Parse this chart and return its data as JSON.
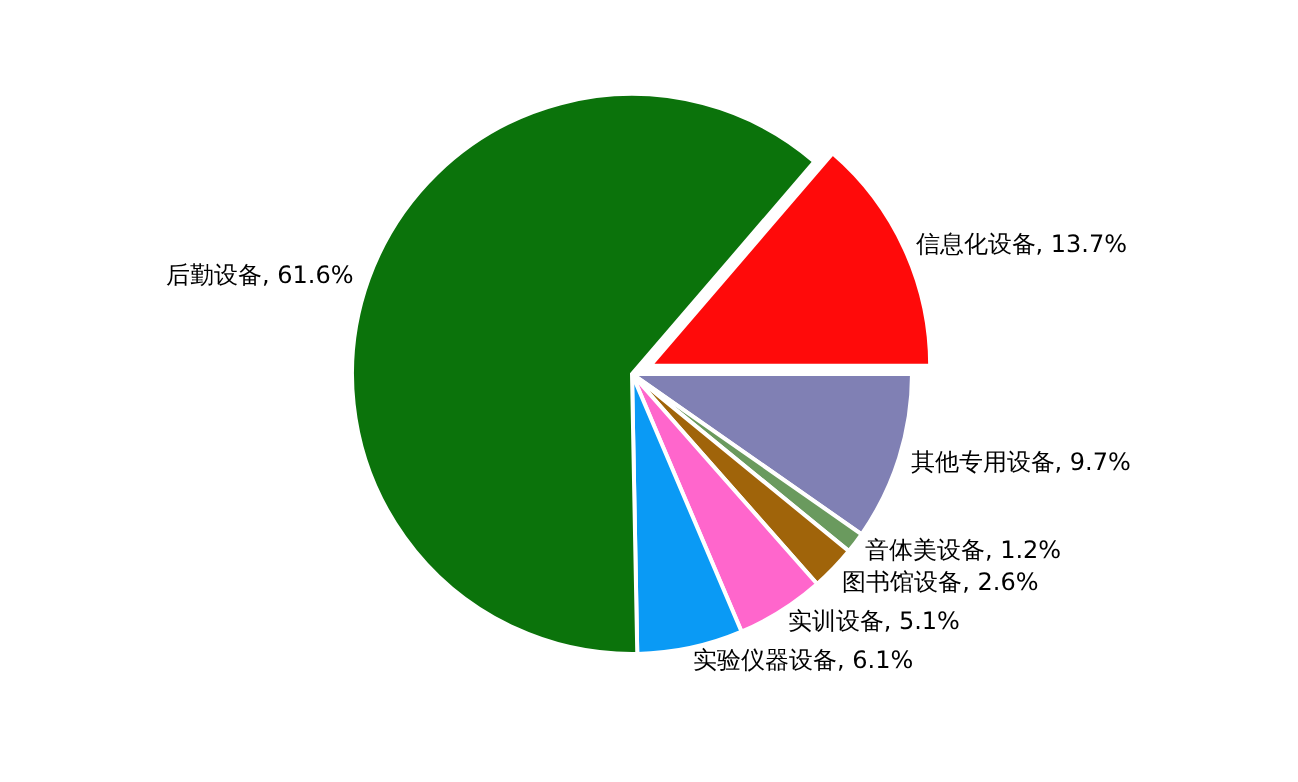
{
  "chart_data": {
    "type": "pie",
    "categories": [
      "信息化设备",
      "其他专用设备",
      "音体美设备",
      "图书馆设备",
      "实训设备",
      "实验仪器设备",
      "后勤设备"
    ],
    "values": [
      13.7,
      9.7,
      1.2,
      2.6,
      5.1,
      6.1,
      61.6
    ],
    "colors": [
      "#ff0a0a",
      "#8080b4",
      "#6a9a5e",
      "#a0640a",
      "#ff66cc",
      "#0a9af5",
      "#0b730b"
    ],
    "value_labels": [
      ", 13.7%",
      ", 9.7%",
      ", 1.2%",
      ", 2.6%",
      ", 5.1%",
      ", 6.1%",
      ", 61.6%"
    ],
    "legend": false
  }
}
